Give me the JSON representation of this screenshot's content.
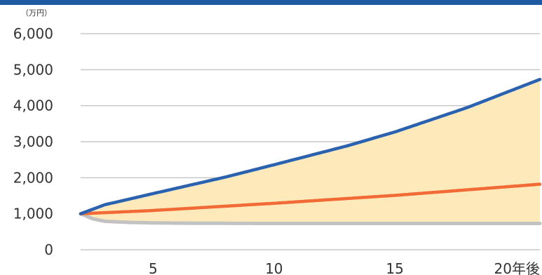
{
  "chart_data": {
    "type": "area",
    "unit_label": "（万円）",
    "ylim": [
      0,
      6000
    ],
    "xlim": [
      2,
      21
    ],
    "yticks": [
      {
        "value": 6000,
        "label": "6,000"
      },
      {
        "value": 5000,
        "label": "5,000"
      },
      {
        "value": 4000,
        "label": "4,000"
      },
      {
        "value": 3000,
        "label": "3,000"
      },
      {
        "value": 2000,
        "label": "2,000"
      },
      {
        "value": 1000,
        "label": "1,000"
      },
      {
        "value": 0,
        "label": "0"
      }
    ],
    "xticks": [
      {
        "value": 5,
        "label": "5"
      },
      {
        "value": 10,
        "label": "10"
      },
      {
        "value": 15,
        "label": "15"
      },
      {
        "value": 20,
        "label": "20年後"
      }
    ],
    "grid": true,
    "series": [
      {
        "role": "upper",
        "color": "#2a62b0",
        "x": [
          2,
          3,
          5,
          8,
          10,
          13,
          15,
          18,
          21
        ],
        "y": [
          1000,
          1250,
          1560,
          2020,
          2360,
          2880,
          3270,
          3950,
          4730
        ]
      },
      {
        "role": "middle",
        "color": "#f26a35",
        "x": [
          2,
          5,
          10,
          15,
          21
        ],
        "y": [
          1000,
          1090,
          1290,
          1510,
          1820
        ]
      },
      {
        "role": "lower",
        "color": "#c2c2c2",
        "x": [
          2,
          2.5,
          3,
          4,
          5,
          7,
          10,
          15,
          21
        ],
        "y": [
          1000,
          860,
          790,
          760,
          745,
          735,
          730,
          730,
          730
        ]
      }
    ],
    "band_fill": "#fde9b9"
  },
  "colors": {
    "topbar": "#1e5aa3",
    "grid": "#c8c8c8"
  }
}
